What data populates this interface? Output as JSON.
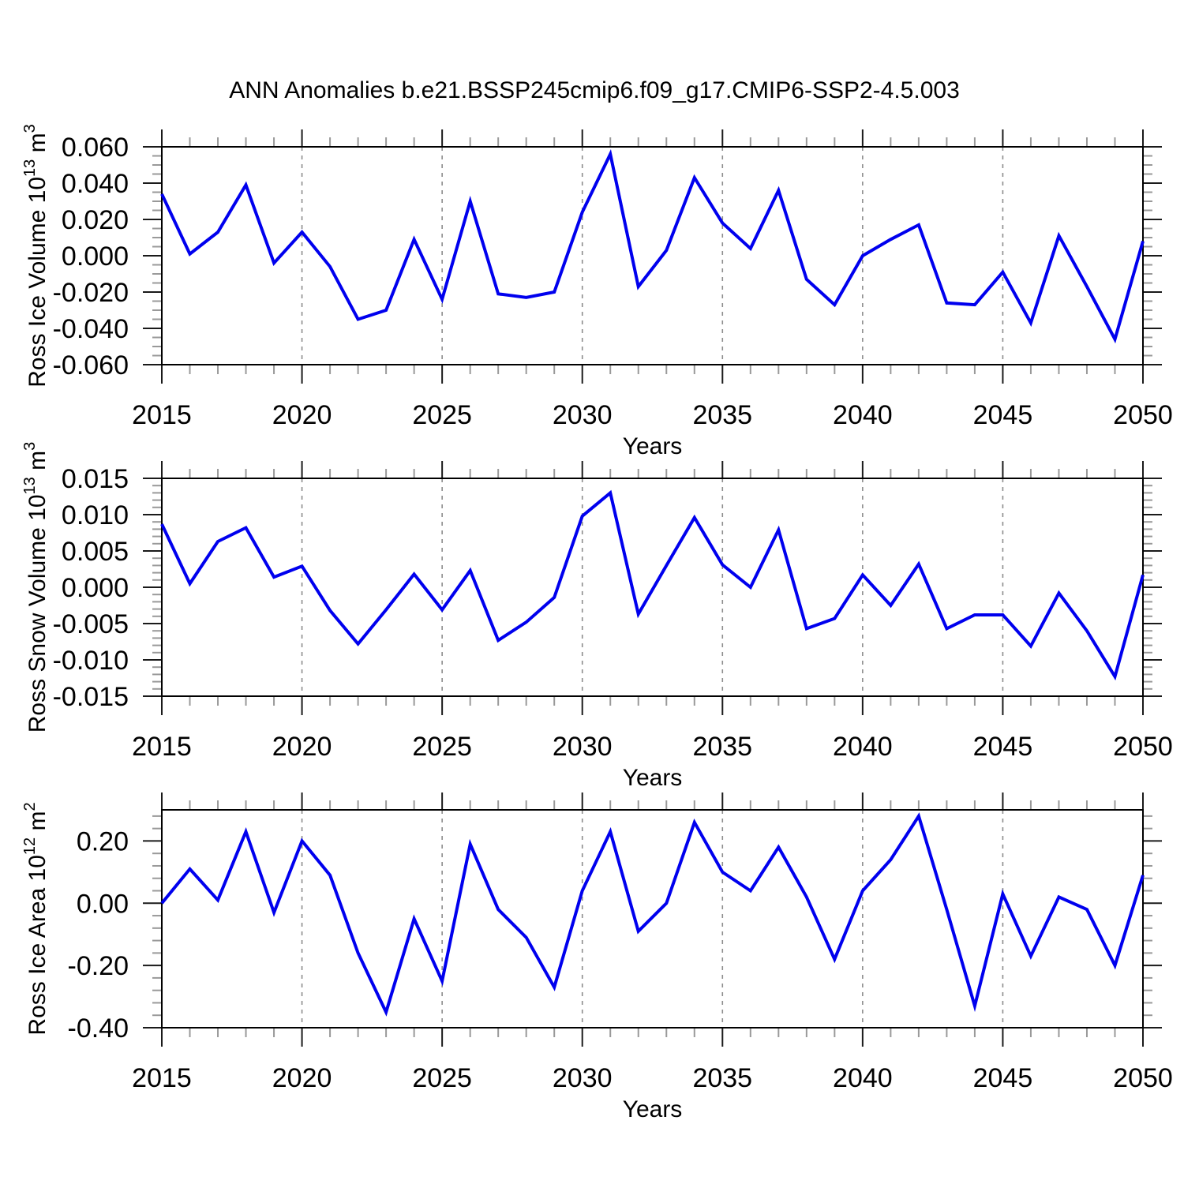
{
  "title": "ANN Anomalies b.e21.BSSP245cmip6.f09_g17.CMIP6-SSP2-4.5.003",
  "colors": {
    "line": "#0000ee",
    "frame": "#000000",
    "major_tick": "#1a1a1a",
    "minor_tick": "#999999",
    "grid": "#8c8c8c",
    "text": "#000000"
  },
  "x_axis": {
    "title": "Years",
    "range": [
      2015,
      2050
    ],
    "major_ticks": [
      2015,
      2020,
      2025,
      2030,
      2035,
      2040,
      2045,
      2050
    ],
    "major_tick_labels": [
      "2015",
      "2020",
      "2025",
      "2030",
      "2035",
      "2040",
      "2045",
      "2050"
    ],
    "minor_step": 1,
    "gridlines": [
      2020,
      2025,
      2030,
      2035,
      2040,
      2045
    ]
  },
  "chart_data": [
    {
      "type": "line",
      "name": "ross-ice-volume",
      "ylabel_text": "Ross Ice Volume 10^13 m^3",
      "ylabel_parts": [
        {
          "text": "Ross Ice Volume 10"
        },
        {
          "text": "13",
          "sup": true
        },
        {
          "text": " m"
        },
        {
          "text": "3",
          "sup": true
        }
      ],
      "ylim": [
        -0.06,
        0.06
      ],
      "ytick_values": [
        0.06,
        0.04,
        0.02,
        0.0,
        -0.02,
        -0.04,
        -0.06
      ],
      "ytick_labels": [
        "0.060",
        "0.040",
        "0.020",
        "0.000",
        "-0.020",
        "-0.040",
        "-0.060"
      ],
      "yminor_step": 0.005,
      "x": [
        2015,
        2016,
        2017,
        2018,
        2019,
        2020,
        2021,
        2022,
        2023,
        2024,
        2025,
        2026,
        2027,
        2028,
        2029,
        2030,
        2031,
        2032,
        2033,
        2034,
        2035,
        2036,
        2037,
        2038,
        2039,
        2040,
        2041,
        2042,
        2043,
        2044,
        2045,
        2046,
        2047,
        2048,
        2049,
        2050
      ],
      "values": [
        0.034,
        0.001,
        0.013,
        0.039,
        -0.004,
        0.013,
        -0.006,
        -0.035,
        -0.03,
        0.009,
        -0.024,
        0.03,
        -0.021,
        -0.023,
        -0.02,
        0.024,
        0.056,
        -0.017,
        0.003,
        0.043,
        0.018,
        0.004,
        0.036,
        -0.013,
        -0.027,
        0.0,
        0.009,
        0.017,
        -0.026,
        -0.027,
        -0.009,
        -0.037,
        0.011,
        -0.017,
        -0.046,
        0.008
      ]
    },
    {
      "type": "line",
      "name": "ross-snow-volume",
      "ylabel_text": "Ross Snow Volume 10^13 m^3",
      "ylabel_parts": [
        {
          "text": "Ross Snow Volume 10"
        },
        {
          "text": "13",
          "sup": true
        },
        {
          "text": " m"
        },
        {
          "text": "3",
          "sup": true
        }
      ],
      "ylim": [
        -0.015,
        0.015
      ],
      "ytick_values": [
        0.015,
        0.01,
        0.005,
        0.0,
        -0.005,
        -0.01,
        -0.015
      ],
      "ytick_labels": [
        "0.015",
        "0.010",
        "0.005",
        "0.000",
        "-0.005",
        "-0.010",
        "-0.015"
      ],
      "yminor_step": 0.001,
      "x": [
        2015,
        2016,
        2017,
        2018,
        2019,
        2020,
        2021,
        2022,
        2023,
        2024,
        2025,
        2026,
        2027,
        2028,
        2029,
        2030,
        2031,
        2032,
        2033,
        2034,
        2035,
        2036,
        2037,
        2038,
        2039,
        2040,
        2041,
        2042,
        2043,
        2044,
        2045,
        2046,
        2047,
        2048,
        2049,
        2050
      ],
      "values": [
        0.0087,
        0.0005,
        0.0063,
        0.0082,
        0.0014,
        0.0029,
        -0.0032,
        -0.0078,
        -0.0031,
        0.0018,
        -0.0031,
        0.0023,
        -0.0073,
        -0.0048,
        -0.0014,
        0.0098,
        0.013,
        -0.0037,
        0.003,
        0.0096,
        0.0031,
        0.0,
        0.0079,
        -0.0057,
        -0.0043,
        0.0017,
        -0.0025,
        0.0032,
        -0.0057,
        -0.0038,
        -0.0038,
        -0.0081,
        -0.0008,
        -0.006,
        -0.0123,
        0.0017
      ]
    },
    {
      "type": "line",
      "name": "ross-ice-area",
      "ylabel_text": "Ross Ice Area 10^12 m^2",
      "ylabel_parts": [
        {
          "text": "Ross Ice Area 10"
        },
        {
          "text": "12",
          "sup": true
        },
        {
          "text": " m"
        },
        {
          "text": "2",
          "sup": true
        }
      ],
      "ylim": [
        -0.4,
        0.3
      ],
      "ytick_values": [
        0.2,
        0.0,
        -0.2,
        -0.4
      ],
      "ytick_labels": [
        "0.20",
        "0.00",
        "-0.20",
        "-0.40"
      ],
      "yminor_step": 0.04,
      "x": [
        2015,
        2016,
        2017,
        2018,
        2019,
        2020,
        2021,
        2022,
        2023,
        2024,
        2025,
        2026,
        2027,
        2028,
        2029,
        2030,
        2031,
        2032,
        2033,
        2034,
        2035,
        2036,
        2037,
        2038,
        2039,
        2040,
        2041,
        2042,
        2043,
        2044,
        2045,
        2046,
        2047,
        2048,
        2049,
        2050
      ],
      "values": [
        0.0,
        0.11,
        0.01,
        0.23,
        -0.03,
        0.2,
        0.09,
        -0.16,
        -0.35,
        -0.05,
        -0.25,
        0.19,
        -0.02,
        -0.11,
        -0.27,
        0.04,
        0.23,
        -0.09,
        0.0,
        0.26,
        0.1,
        0.04,
        0.18,
        0.02,
        -0.18,
        0.04,
        0.14,
        0.28,
        -0.02,
        -0.33,
        0.03,
        -0.17,
        0.02,
        -0.02,
        -0.2,
        0.09
      ]
    }
  ]
}
